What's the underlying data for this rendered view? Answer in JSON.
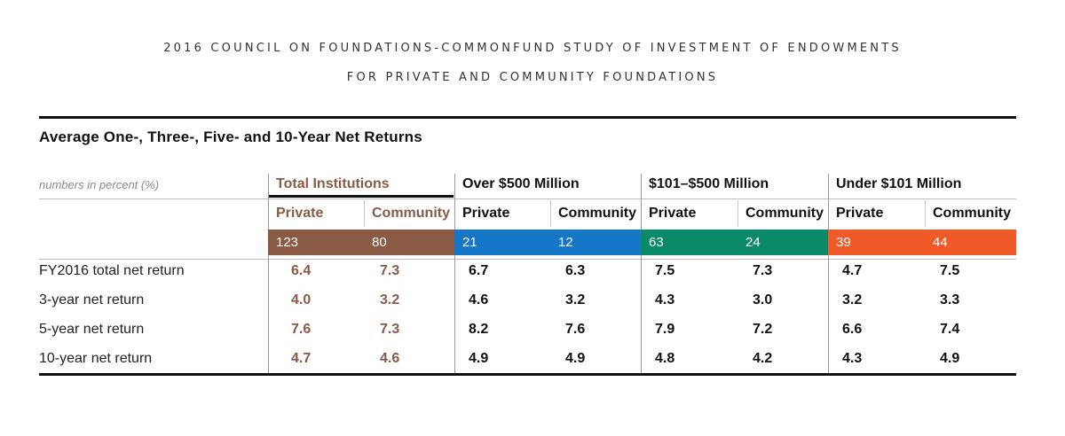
{
  "header": {
    "line1": "2016 COUNCIL ON FOUNDATIONS-COMMONFUND STUDY OF INVESTMENT OF ENDOWMENTS",
    "line2": "FOR PRIVATE AND COMMUNITY FOUNDATIONS"
  },
  "table": {
    "title": "Average One-, Three-, Five- and 10-Year Net Returns",
    "units_note": "numbers in percent (%)",
    "groups": [
      {
        "label": "Total Institutions",
        "color": "#8b5a44"
      },
      {
        "label": "Over $500 Million",
        "color": "#1677c8"
      },
      {
        "label": "$101–$500 Million",
        "color": "#0b8a68"
      },
      {
        "label": "Under $101 Million",
        "color": "#f05a28"
      }
    ],
    "subheaders": [
      "Private",
      "Community",
      "Private",
      "Community",
      "Private",
      "Community",
      "Private",
      "Community"
    ],
    "counts": [
      "123",
      "80",
      "21",
      "12",
      "63",
      "24",
      "39",
      "44"
    ],
    "rows": [
      {
        "label": "FY2016 total net return",
        "values": [
          "6.4",
          "7.3",
          "6.7",
          "6.3",
          "7.5",
          "7.3",
          "4.7",
          "7.5"
        ]
      },
      {
        "label": "3-year net return",
        "values": [
          "4.0",
          "3.2",
          "4.6",
          "3.2",
          "4.3",
          "3.0",
          "3.2",
          "3.3"
        ]
      },
      {
        "label": "5-year net return",
        "values": [
          "7.6",
          "7.3",
          "8.2",
          "7.6",
          "7.9",
          "7.2",
          "6.6",
          "7.4"
        ]
      },
      {
        "label": "10-year net return",
        "values": [
          "4.7",
          "4.6",
          "4.9",
          "4.9",
          "4.8",
          "4.2",
          "4.3",
          "4.9"
        ]
      }
    ]
  }
}
